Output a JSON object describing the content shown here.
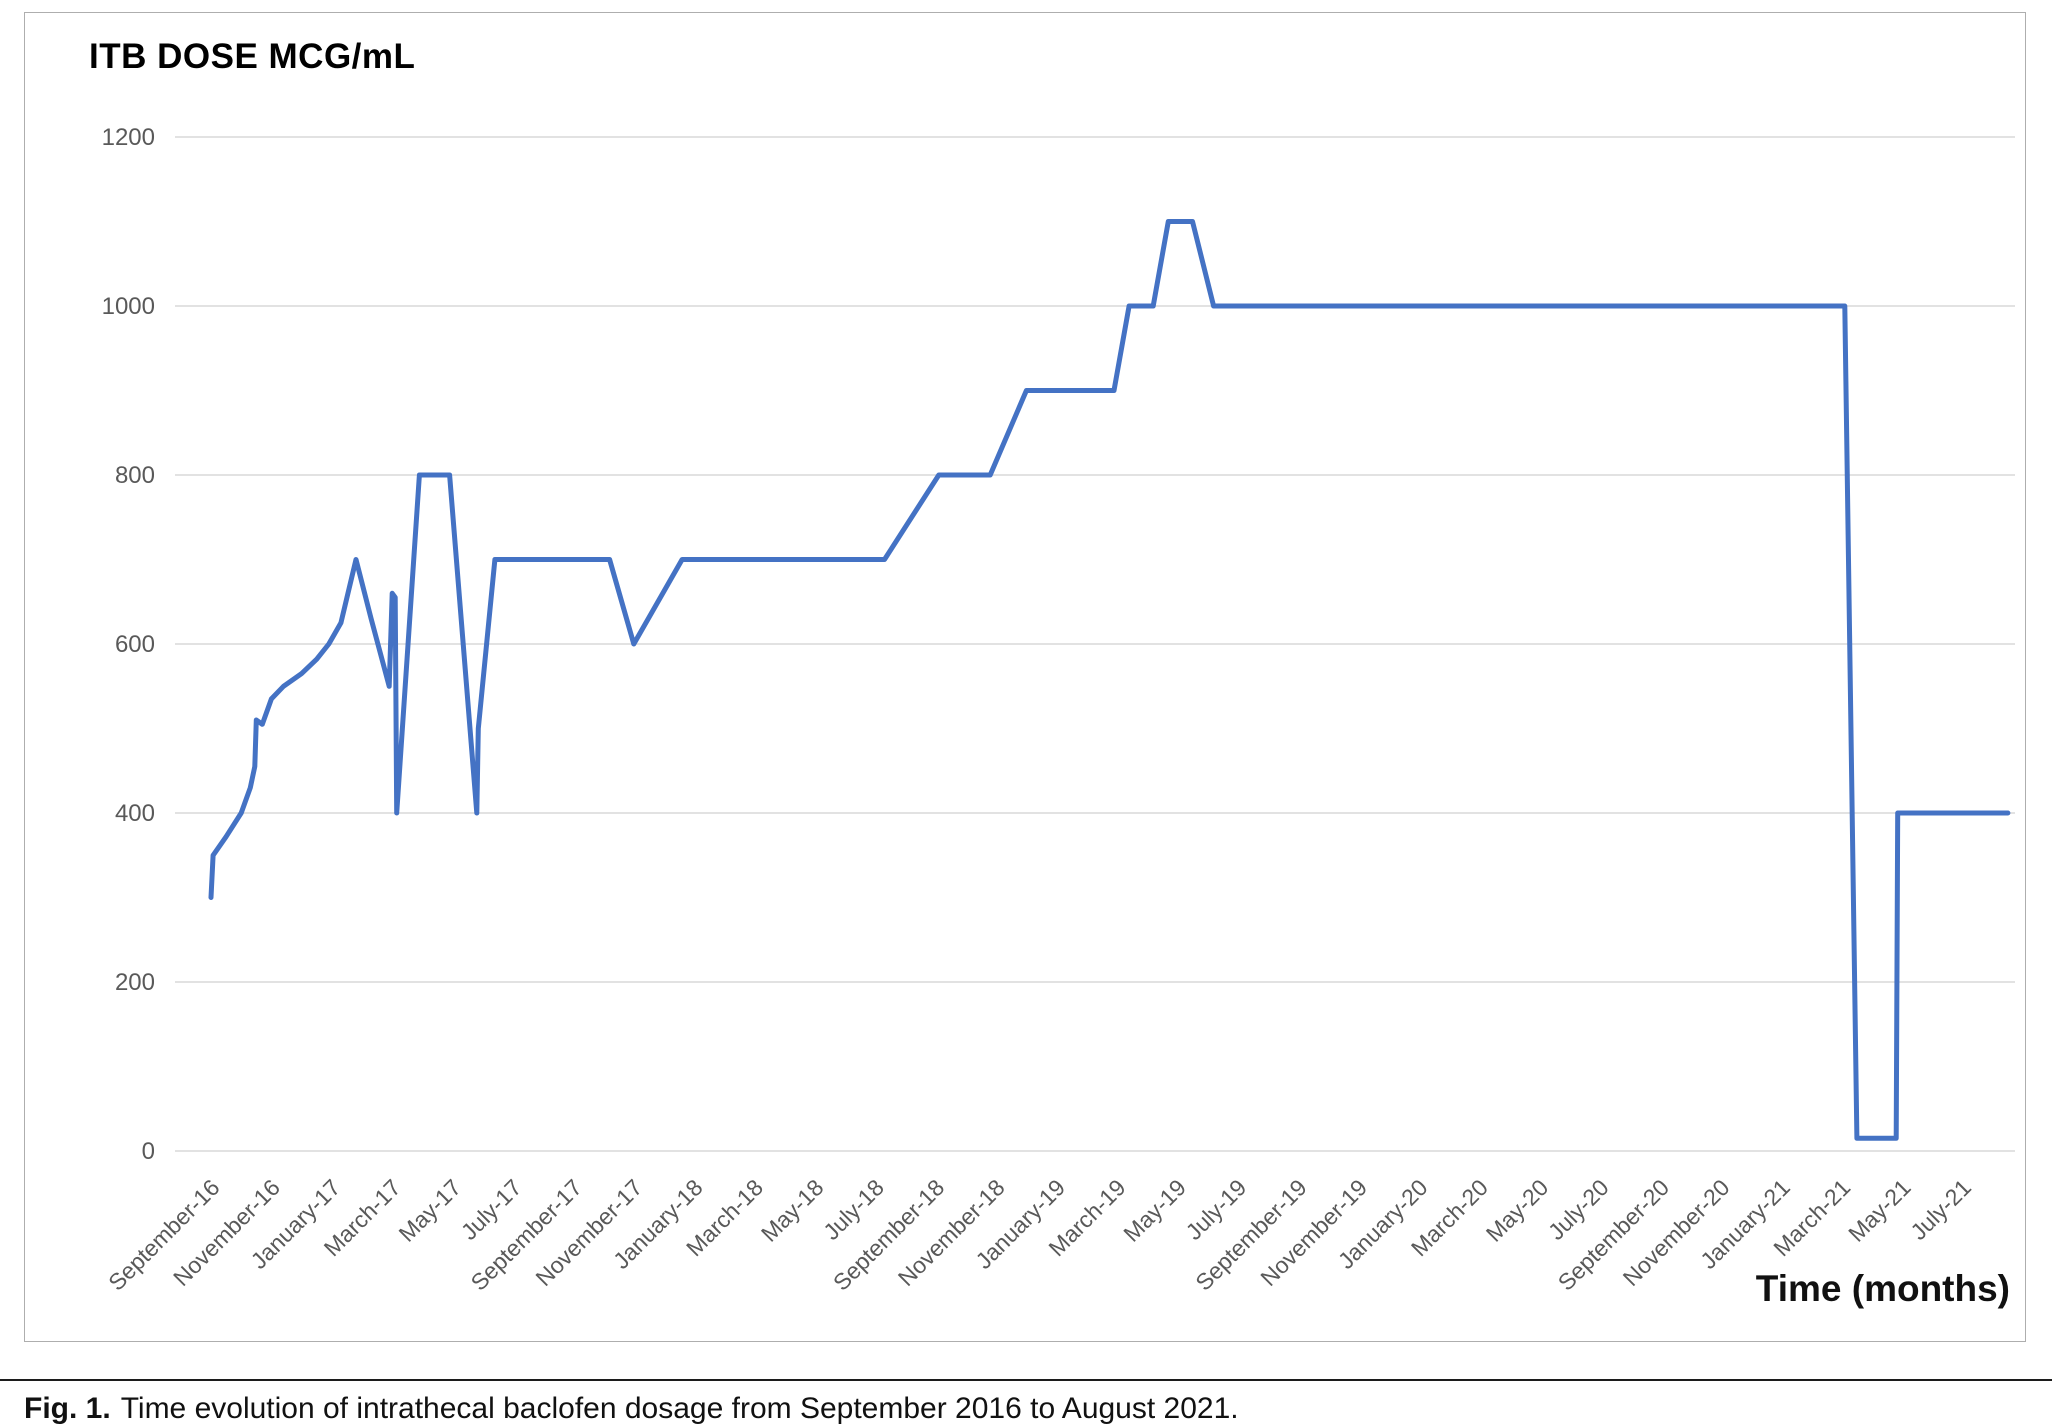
{
  "figure": {
    "title": "ITB DOSE MCG/mL",
    "xlabel": "Time (months)"
  },
  "caption": {
    "label": "Fig. 1.",
    "text": "Time evolution of intrathecal baclofen dosage from September 2016 to August 2021."
  },
  "chart_data": {
    "type": "line",
    "title": "ITB DOSE MCG/mL",
    "xlabel": "Time (months)",
    "ylabel": "ITB dose (mcg/mL)",
    "ylim": [
      0,
      1200
    ],
    "yticks": [
      0,
      200,
      400,
      600,
      800,
      1000,
      1200
    ],
    "grid": "horizontal",
    "legend": "none",
    "x_unit": "months since September 2016",
    "x_tick_interval_months": 2,
    "x_tick_months": [
      0,
      2,
      4,
      6,
      8,
      10,
      12,
      14,
      16,
      18,
      20,
      22,
      24,
      26,
      28,
      30,
      32,
      34,
      36,
      38,
      40,
      42,
      44,
      46,
      48,
      50,
      52,
      54,
      56,
      58
    ],
    "x_tick_labels": [
      "September-16",
      "November-16",
      "January-17",
      "March-17",
      "May-17",
      "July-17",
      "September-17",
      "November-17",
      "January-18",
      "March-18",
      "May-18",
      "July-18",
      "September-18",
      "November-18",
      "January-19",
      "March-19",
      "May-19",
      "July-19",
      "September-19",
      "November-19",
      "January-20",
      "March-20",
      "May-20",
      "July-20",
      "September-20",
      "November-20",
      "January-21",
      "March-21",
      "May-21",
      "July-21"
    ],
    "series": [
      {
        "name": "ITB dose (mcg/mL)",
        "points": [
          [
            0,
            300
          ],
          [
            0.07,
            350
          ],
          [
            0.5,
            372
          ],
          [
            1,
            400
          ],
          [
            1.3,
            430
          ],
          [
            1.45,
            455
          ],
          [
            1.5,
            510
          ],
          [
            1.7,
            505
          ],
          [
            2,
            535
          ],
          [
            2.4,
            550
          ],
          [
            3,
            565
          ],
          [
            3.5,
            582
          ],
          [
            3.9,
            600
          ],
          [
            4.3,
            625
          ],
          [
            4.8,
            700
          ],
          [
            5.3,
            630
          ],
          [
            5.9,
            550
          ],
          [
            6.0,
            660
          ],
          [
            6.1,
            655
          ],
          [
            6.15,
            400
          ],
          [
            6.9,
            800
          ],
          [
            7.9,
            800
          ],
          [
            8.8,
            400
          ],
          [
            8.85,
            500
          ],
          [
            9.4,
            700
          ],
          [
            13.2,
            700
          ],
          [
            14,
            600
          ],
          [
            15.6,
            700
          ],
          [
            22.3,
            700
          ],
          [
            24.1,
            800
          ],
          [
            25.8,
            800
          ],
          [
            27,
            900
          ],
          [
            29.9,
            900
          ],
          [
            30.4,
            1000
          ],
          [
            31.2,
            1000
          ],
          [
            31.7,
            1100
          ],
          [
            32.5,
            1100
          ],
          [
            33.2,
            1000
          ],
          [
            54.1,
            1000
          ],
          [
            54.5,
            15
          ],
          [
            55.8,
            15
          ],
          [
            55.85,
            400
          ],
          [
            59.5,
            400
          ]
        ]
      }
    ],
    "line_color": "#4472C4",
    "gridline_color": "#d8d8d8",
    "tick_label_color": "#595959"
  }
}
